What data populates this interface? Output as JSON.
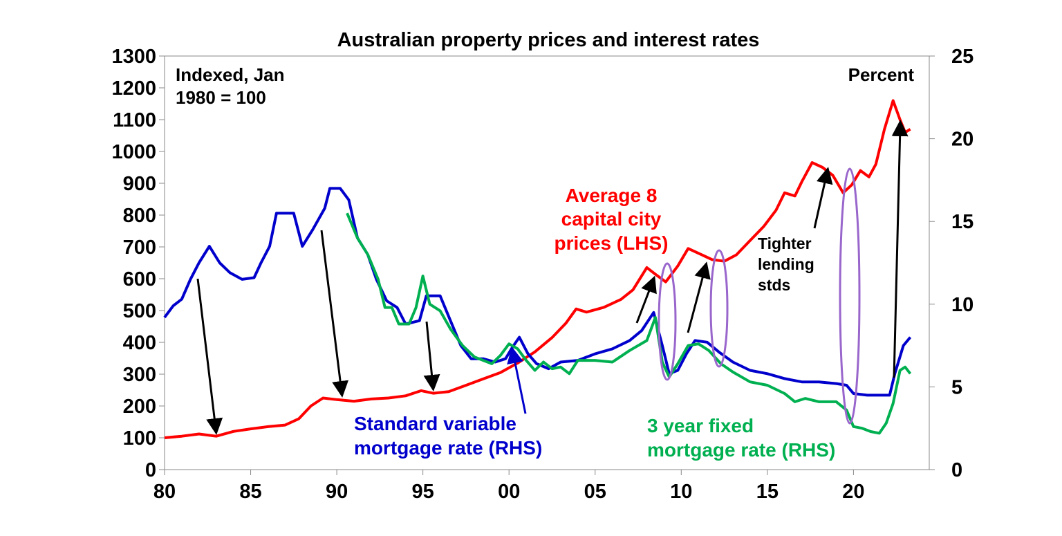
{
  "chart_data": {
    "type": "line",
    "title": "Australian property prices and interest rates",
    "left_axis_label": "Indexed, Jan 1980 = 100",
    "left_axis_label_lines": [
      "Indexed, Jan",
      "1980 = 100"
    ],
    "right_axis_label": "Percent",
    "x_ticks": [
      {
        "value": 1980,
        "label": "80"
      },
      {
        "value": 1985,
        "label": "85"
      },
      {
        "value": 1990,
        "label": "90"
      },
      {
        "value": 1995,
        "label": "95"
      },
      {
        "value": 2000,
        "label": "00"
      },
      {
        "value": 2005,
        "label": "05"
      },
      {
        "value": 2010,
        "label": "10"
      },
      {
        "value": 2015,
        "label": "15"
      },
      {
        "value": 2020,
        "label": "20"
      }
    ],
    "xlim": [
      1980,
      2024.4
    ],
    "y_left": {
      "ylim": [
        0,
        1300
      ],
      "ticks": [
        "0",
        "100",
        "200",
        "300",
        "400",
        "500",
        "600",
        "700",
        "800",
        "900",
        "1000",
        "1100",
        "1200",
        "1300"
      ]
    },
    "y_right": {
      "ylim": [
        0,
        25
      ],
      "ticks": [
        "0",
        "5",
        "10",
        "15",
        "20",
        "25"
      ]
    },
    "series": [
      {
        "name": "Average 8 capital city prices (LHS)",
        "label_lines": [
          "Average 8",
          "capital city",
          "prices (LHS)"
        ],
        "axis": "left",
        "color": "#ff0000",
        "points": [
          [
            1980,
            100
          ],
          [
            1981,
            105
          ],
          [
            1982,
            112
          ],
          [
            1983,
            105
          ],
          [
            1984,
            120
          ],
          [
            1985,
            128
          ],
          [
            1986,
            135
          ],
          [
            1987,
            140
          ],
          [
            1987.8,
            160
          ],
          [
            1988.5,
            200
          ],
          [
            1989.2,
            225
          ],
          [
            1990,
            220
          ],
          [
            1991,
            215
          ],
          [
            1992,
            222
          ],
          [
            1993,
            225
          ],
          [
            1994,
            232
          ],
          [
            1994.9,
            248
          ],
          [
            1995.6,
            240
          ],
          [
            1996.5,
            245
          ],
          [
            1997.5,
            265
          ],
          [
            1998.5,
            285
          ],
          [
            1999.5,
            305
          ],
          [
            2000.5,
            335
          ],
          [
            2001.5,
            370
          ],
          [
            2002.5,
            415
          ],
          [
            2003.3,
            460
          ],
          [
            2003.9,
            505
          ],
          [
            2004.5,
            495
          ],
          [
            2005.5,
            510
          ],
          [
            2006.5,
            535
          ],
          [
            2007.2,
            565
          ],
          [
            2008,
            635
          ],
          [
            2008.6,
            610
          ],
          [
            2009.1,
            590
          ],
          [
            2009.8,
            640
          ],
          [
            2010.4,
            695
          ],
          [
            2011,
            680
          ],
          [
            2011.8,
            660
          ],
          [
            2012.5,
            655
          ],
          [
            2013.2,
            675
          ],
          [
            2014,
            720
          ],
          [
            2014.8,
            765
          ],
          [
            2015.5,
            815
          ],
          [
            2016,
            870
          ],
          [
            2016.6,
            860
          ],
          [
            2017,
            905
          ],
          [
            2017.6,
            965
          ],
          [
            2018.2,
            950
          ],
          [
            2018.8,
            925
          ],
          [
            2019.4,
            870
          ],
          [
            2019.9,
            895
          ],
          [
            2020.4,
            940
          ],
          [
            2020.9,
            920
          ],
          [
            2021.3,
            960
          ],
          [
            2021.8,
            1070
          ],
          [
            2022.3,
            1160
          ],
          [
            2022.7,
            1100
          ],
          [
            2023,
            1060
          ],
          [
            2023.3,
            1070
          ]
        ]
      },
      {
        "name": "Standard variable mortgage rate (RHS)",
        "label_lines": [
          "Standard variable",
          "mortgage rate (RHS)"
        ],
        "axis": "right",
        "color": "#0000cc",
        "points": [
          [
            1980,
            9.2
          ],
          [
            1980.5,
            9.9
          ],
          [
            1981,
            10.3
          ],
          [
            1981.5,
            11.5
          ],
          [
            1982,
            12.5
          ],
          [
            1982.6,
            13.5
          ],
          [
            1983.2,
            12.5
          ],
          [
            1983.8,
            11.9
          ],
          [
            1984.5,
            11.5
          ],
          [
            1985.2,
            11.6
          ],
          [
            1985.6,
            12.5
          ],
          [
            1986.1,
            13.5
          ],
          [
            1986.5,
            15.5
          ],
          [
            1987.5,
            15.5
          ],
          [
            1988,
            13.5
          ],
          [
            1988.6,
            14.5
          ],
          [
            1989.3,
            15.8
          ],
          [
            1989.6,
            17
          ],
          [
            1990.2,
            17
          ],
          [
            1990.7,
            16.3
          ],
          [
            1991.2,
            14
          ],
          [
            1991.8,
            13
          ],
          [
            1992.3,
            11.5
          ],
          [
            1992.9,
            10.2
          ],
          [
            1993.5,
            9.8
          ],
          [
            1994,
            8.8
          ],
          [
            1994.8,
            9
          ],
          [
            1995.2,
            10.5
          ],
          [
            1996,
            10.5
          ],
          [
            1996.6,
            9
          ],
          [
            1997.2,
            7.5
          ],
          [
            1997.8,
            6.7
          ],
          [
            1998.5,
            6.7
          ],
          [
            1999.2,
            6.5
          ],
          [
            1999.8,
            6.7
          ],
          [
            2000.2,
            7.4
          ],
          [
            2000.6,
            8
          ],
          [
            2001.1,
            7
          ],
          [
            2001.6,
            6.4
          ],
          [
            2002.3,
            6.1
          ],
          [
            2003,
            6.5
          ],
          [
            2004,
            6.6
          ],
          [
            2005,
            7
          ],
          [
            2006,
            7.3
          ],
          [
            2007,
            7.8
          ],
          [
            2007.7,
            8.4
          ],
          [
            2008.4,
            9.5
          ],
          [
            2008.9,
            7.5
          ],
          [
            2009.3,
            5.8
          ],
          [
            2009.8,
            6
          ],
          [
            2010.3,
            7
          ],
          [
            2010.8,
            7.8
          ],
          [
            2011.5,
            7.7
          ],
          [
            2012.2,
            7.1
          ],
          [
            2013,
            6.5
          ],
          [
            2014,
            6
          ],
          [
            2015,
            5.8
          ],
          [
            2016,
            5.5
          ],
          [
            2017,
            5.3
          ],
          [
            2018,
            5.3
          ],
          [
            2019,
            5.2
          ],
          [
            2019.6,
            5.1
          ],
          [
            2020,
            4.6
          ],
          [
            2020.8,
            4.5
          ],
          [
            2022.1,
            4.5
          ],
          [
            2022.4,
            5.8
          ],
          [
            2022.9,
            7.5
          ],
          [
            2023.3,
            8
          ]
        ]
      },
      {
        "name": "3 year fixed mortgage rate (RHS)",
        "label_lines": [
          "3 year fixed",
          "mortgage rate (RHS)"
        ],
        "axis": "right",
        "color": "#00b050",
        "points": [
          [
            1990.6,
            15.5
          ],
          [
            1991.2,
            14
          ],
          [
            1991.8,
            13
          ],
          [
            1992.4,
            11.5
          ],
          [
            1992.8,
            9.8
          ],
          [
            1993.2,
            9.8
          ],
          [
            1993.6,
            8.8
          ],
          [
            1994.2,
            8.8
          ],
          [
            1994.6,
            9.8
          ],
          [
            1995,
            11.7
          ],
          [
            1995.4,
            10
          ],
          [
            1996,
            9.6
          ],
          [
            1996.6,
            8.5
          ],
          [
            1997.3,
            7.5
          ],
          [
            1998,
            6.8
          ],
          [
            1999,
            6.4
          ],
          [
            1999.5,
            6.9
          ],
          [
            2000,
            7.6
          ],
          [
            2000.5,
            7.3
          ],
          [
            2001,
            6.6
          ],
          [
            2001.5,
            6
          ],
          [
            2002,
            6.5
          ],
          [
            2002.5,
            6.1
          ],
          [
            2003,
            6.2
          ],
          [
            2003.5,
            5.8
          ],
          [
            2004,
            6.6
          ],
          [
            2005,
            6.6
          ],
          [
            2006,
            6.5
          ],
          [
            2007,
            7.2
          ],
          [
            2008,
            7.8
          ],
          [
            2008.5,
            9.2
          ],
          [
            2008.9,
            6.5
          ],
          [
            2009.3,
            5.6
          ],
          [
            2009.8,
            6.4
          ],
          [
            2010.4,
            7.5
          ],
          [
            2011,
            7.6
          ],
          [
            2011.6,
            7.2
          ],
          [
            2012.3,
            6.4
          ],
          [
            2013,
            5.9
          ],
          [
            2014,
            5.3
          ],
          [
            2015,
            5.1
          ],
          [
            2016,
            4.6
          ],
          [
            2016.6,
            4.1
          ],
          [
            2017.2,
            4.3
          ],
          [
            2018,
            4.1
          ],
          [
            2019,
            4.1
          ],
          [
            2019.6,
            3.6
          ],
          [
            2020,
            2.6
          ],
          [
            2020.5,
            2.5
          ],
          [
            2021,
            2.3
          ],
          [
            2021.5,
            2.2
          ],
          [
            2021.9,
            2.8
          ],
          [
            2022.3,
            4
          ],
          [
            2022.7,
            6
          ],
          [
            2023,
            6.2
          ],
          [
            2023.3,
            5.8
          ]
        ]
      }
    ],
    "annotations": {
      "tighter_lending": [
        "Tighter",
        "lending",
        "stds"
      ]
    },
    "grid": false,
    "legend": "none"
  }
}
